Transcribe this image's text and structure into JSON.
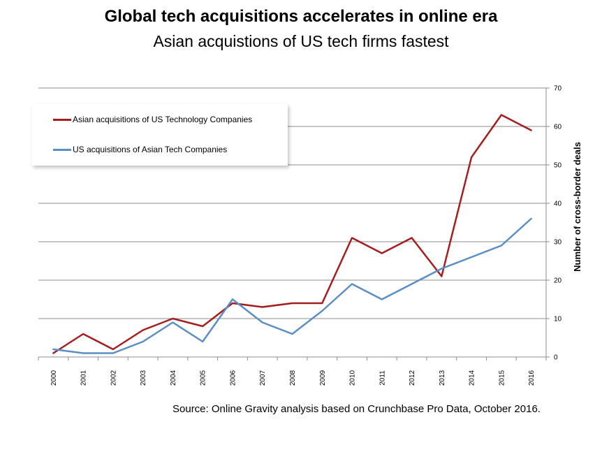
{
  "title": "Global tech acquisitions accelerates in online era",
  "subtitle": "Asian acquistions of US tech firms fastest",
  "source": "Source: Online Gravity analysis based on Crunchbase Pro Data, October 2016.",
  "chart_data": {
    "type": "line",
    "x": [
      "2000",
      "2001",
      "2002",
      "2003",
      "2004",
      "2005",
      "2006",
      "2007",
      "2008",
      "2009",
      "2010",
      "2011",
      "2012",
      "2013",
      "2014",
      "2015",
      "2016"
    ],
    "ylabel": "Number of cross-border deals",
    "ylim": [
      0,
      70
    ],
    "yticks": [
      0,
      10,
      20,
      30,
      40,
      50,
      60,
      70
    ],
    "y_axis_side": "right",
    "grid": true,
    "legend_position": "top-left",
    "series": [
      {
        "name": "Asian acquisitions of US Technology Companies",
        "color": "#a31f1f",
        "values": [
          1,
          6,
          2,
          7,
          10,
          8,
          14,
          13,
          14,
          14,
          31,
          27,
          31,
          21,
          52,
          63,
          59
        ]
      },
      {
        "name": "US acquisitions of Asian Tech Companies",
        "color": "#5b8ec4",
        "values": [
          2,
          1,
          1,
          4,
          9,
          4,
          15,
          9,
          6,
          12,
          19,
          15,
          19,
          23,
          26,
          29,
          36
        ]
      }
    ]
  }
}
